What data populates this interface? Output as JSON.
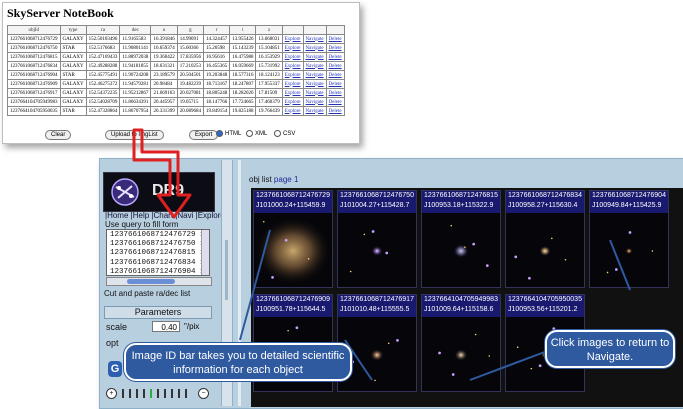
{
  "notebook": {
    "title": "SkyServer NoteBook",
    "columns": [
      "objId",
      "type",
      "ra",
      "dec",
      "u",
      "g",
      "r",
      "i",
      "z",
      "",
      "",
      ""
    ],
    "rows": [
      [
        "1237661068712476729",
        "GALAXY",
        "152.50103496",
        "11.9165583",
        "16.391846",
        "14.99091",
        "14.324457",
        "13.955426",
        "13.660031",
        "Explore",
        "Navigate",
        "Delete"
      ],
      [
        "1237661068712476750",
        "STAR",
        "152.5176683",
        "11.90801141",
        "16.659374",
        "15.60366",
        "15.26598",
        "15.143239",
        "15.104851",
        "Explore",
        "Navigate",
        "Delete"
      ],
      [
        "1237661068712476815",
        "GALAXY",
        "152.47169433",
        "11.88972038",
        "19.360422",
        "17.835956",
        "16.95616",
        "16.475988",
        "16.153929",
        "Explore",
        "Navigate",
        "Delete"
      ],
      [
        "1237661068712476834",
        "GALAXY",
        "152.49288288",
        "11.94181855",
        "18.631321",
        "17.210253",
        "16.455365",
        "16.059669",
        "15.731992",
        "Explore",
        "Navigate",
        "Delete"
      ],
      [
        "1237661068712476904",
        "STAR",
        "152.45775491",
        "11.90724208",
        "23.189579",
        "20.504501",
        "19.203848",
        "18.577316",
        "18.124123",
        "Explore",
        "Navigate",
        "Delete"
      ],
      [
        "1237661068712476909",
        "GALAXY",
        "152.46275372",
        "11.94579281",
        "20.98484",
        "19.482239",
        "18.713167",
        "18.247807",
        "17.955337",
        "Explore",
        "Navigate",
        "Delete"
      ],
      [
        "1237661068712476917",
        "GALAXY",
        "152.54372235",
        "11.95212867",
        "21.669163",
        "20.027081",
        "18.805248",
        "18.282026",
        "17.81509",
        "Explore",
        "Navigate",
        "Delete"
      ],
      [
        "1237664104705949983",
        "GALAXY",
        "152.54028709",
        "11.86634391",
        "20.445957",
        "19.05715",
        "18.147766",
        "17.724665",
        "17.460379",
        "Explore",
        "Navigate",
        "Delete"
      ],
      [
        "1237664104705950035",
        "STAR",
        "152.47328864",
        "11.86707954",
        "20.331399",
        "20.089684",
        "19.849154",
        "19.825188",
        "19.766439",
        "Explore",
        "Navigate",
        "Delete"
      ]
    ],
    "buttons": {
      "clear": "Clear",
      "upload": "Upload to ImgList",
      "export": "Export"
    },
    "formats": [
      {
        "label": "HTML",
        "selected": true
      },
      {
        "label": "XML",
        "selected": false
      },
      {
        "label": "CSV",
        "selected": false
      }
    ]
  },
  "sidebar": {
    "logo_text": "DR9",
    "nav": [
      "|Home",
      "|Help",
      "|Chart",
      "|Navi",
      "|Explore",
      "|"
    ],
    "query_hint": "Use query to fill form",
    "ids": [
      "1237661068712476729 1",
      "1237661068712476750 1",
      "1237661068712476815 1",
      "1237661068712476834 1",
      "1237661068712476904 1"
    ],
    "cut_paste_label": "Cut and paste ra/dec list",
    "parameters": {
      "header": "Parameters",
      "scale_label": "scale",
      "scale_value": "0.40",
      "scale_unit": "\"/pix",
      "opt_label": "opt"
    }
  },
  "objlist": {
    "label": "obj list",
    "page": "page 1"
  },
  "images": [
    {
      "id": "1237661068712476729",
      "name": "J101000.24+115459.9"
    },
    {
      "id": "1237661068712476750",
      "name": "J101004.27+115428.7"
    },
    {
      "id": "1237661068712476815",
      "name": "J100953.18+115322.9"
    },
    {
      "id": "1237661068712476834",
      "name": "J100958.27+115630.4"
    },
    {
      "id": "1237661068712476904",
      "name": "J100949.84+115425.9"
    },
    {
      "id": "1237661068712476909",
      "name": "J100951.78+115644.5"
    },
    {
      "id": "1237661068712476917",
      "name": "J101010.48+115555.5"
    },
    {
      "id": "1237664104705949983",
      "name": "J101009.64+115158.6"
    },
    {
      "id": "1237664104705950035",
      "name": "J100953.56+115201.2"
    }
  ],
  "callouts": {
    "left": "Image ID bar takes you to  detailed scientific information for each object",
    "right": "Click images to return to Navigate."
  },
  "colors": {
    "accent": "#2f5aa0",
    "arrow": "#e02020",
    "id_bar": "#191970"
  }
}
